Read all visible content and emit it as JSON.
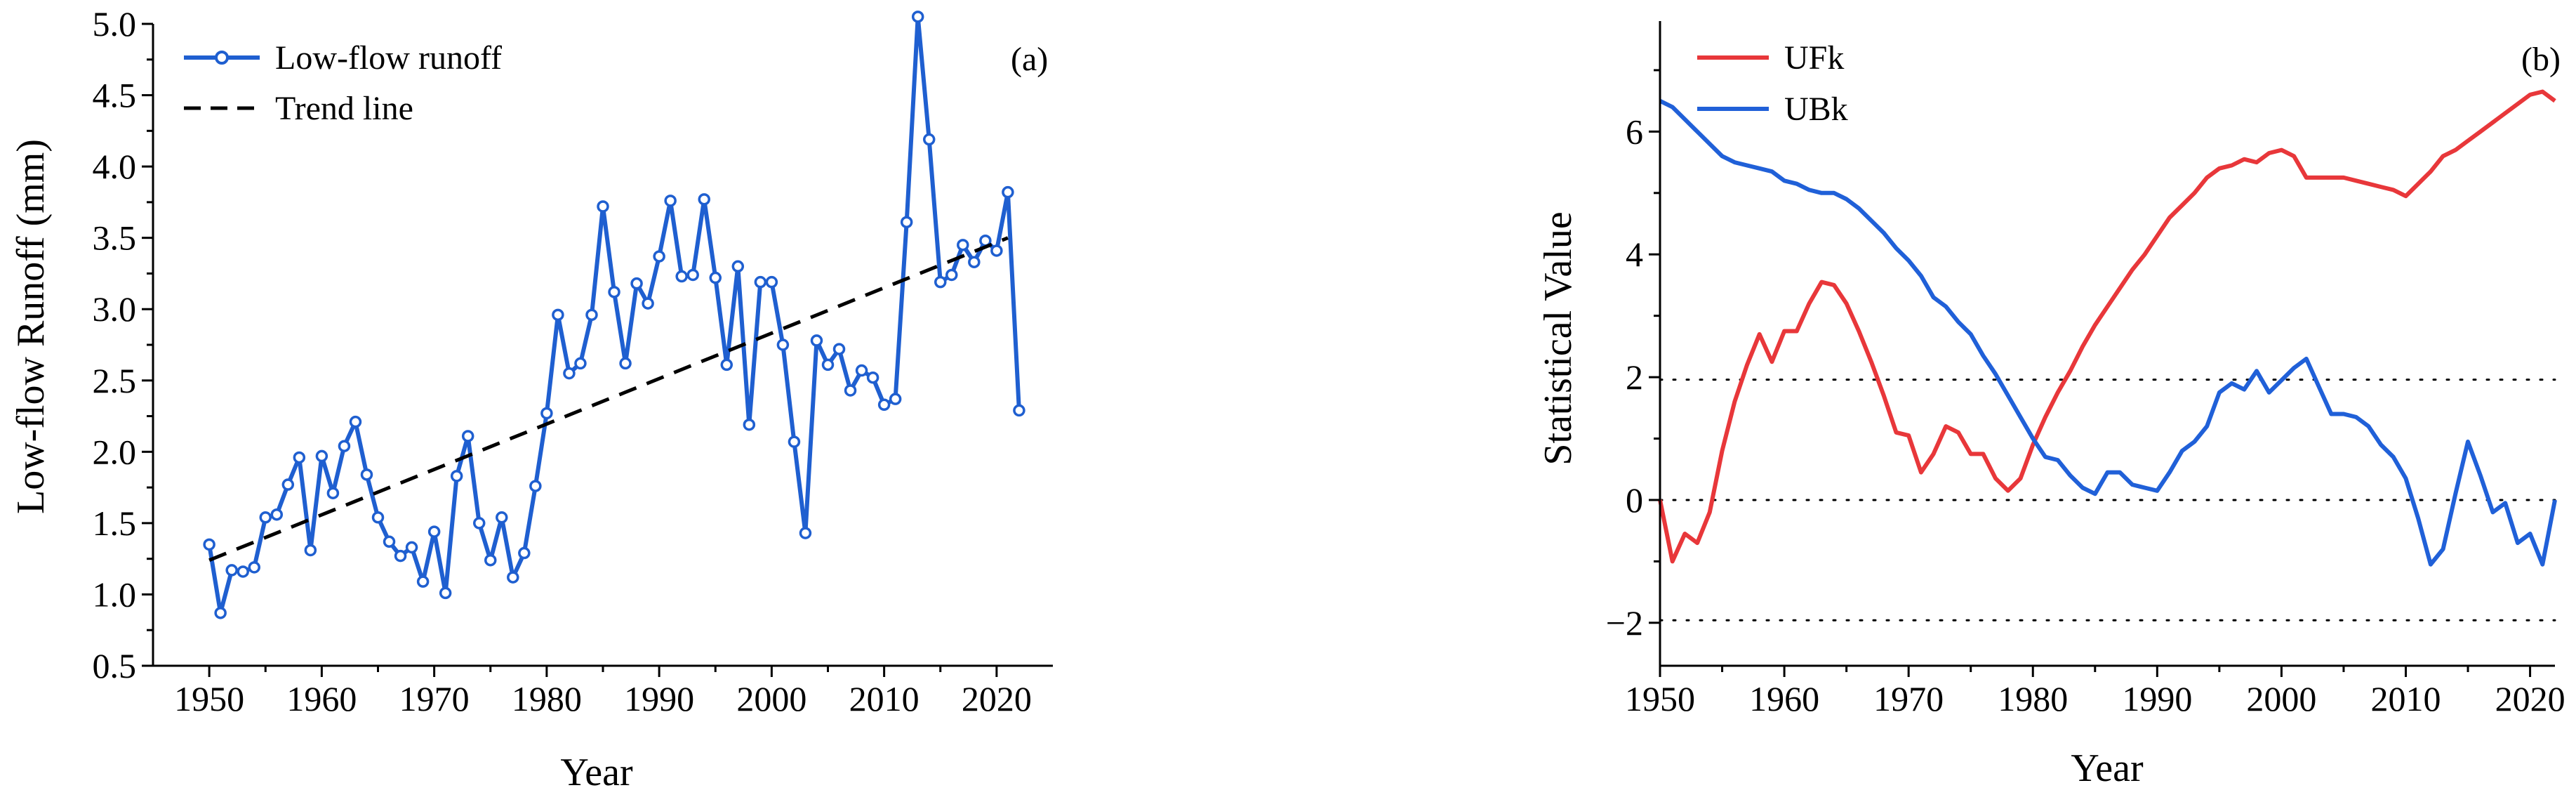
{
  "chart_data": [
    {
      "type": "line",
      "panel_label": "(a)",
      "xlabel": "Year",
      "ylabel": "Low-flow Runoff (mm)",
      "xlim": [
        1945,
        2025
      ],
      "ylim": [
        0.5,
        5.0
      ],
      "x_ticks": [
        1950,
        1960,
        1970,
        1980,
        1990,
        2000,
        2010,
        2020
      ],
      "x_tick_labels": [
        "1950",
        "1960",
        "1970",
        "1980",
        "1990",
        "2000",
        "2010",
        "2020"
      ],
      "y_ticks": [
        0.5,
        1.0,
        1.5,
        2.0,
        2.5,
        3.0,
        3.5,
        4.0,
        4.5,
        5.0
      ],
      "y_tick_labels": [
        "0.5",
        "1.0",
        "1.5",
        "2.0",
        "2.5",
        "3.0",
        "3.5",
        "4.0",
        "4.5",
        "5.0"
      ],
      "legend_position": "top-left",
      "grid": false,
      "series": [
        {
          "name": "Low-flow runoff",
          "color": "#1f5fd0",
          "style": "solid-with-open-circles",
          "x": [
            1950,
            1951,
            1952,
            1953,
            1954,
            1955,
            1956,
            1957,
            1958,
            1959,
            1960,
            1961,
            1962,
            1963,
            1964,
            1965,
            1966,
            1967,
            1968,
            1969,
            1970,
            1971,
            1972,
            1973,
            1974,
            1975,
            1976,
            1977,
            1978,
            1979,
            1980,
            1981,
            1982,
            1983,
            1984,
            1985,
            1986,
            1987,
            1988,
            1989,
            1990,
            1991,
            1992,
            1993,
            1994,
            1995,
            1996,
            1997,
            1998,
            1999,
            2000,
            2001,
            2002,
            2003,
            2004,
            2005,
            2006,
            2007,
            2008,
            2009,
            2010,
            2011,
            2012,
            2013,
            2014,
            2015,
            2016,
            2017,
            2018,
            2019,
            2020,
            2021,
            2022
          ],
          "values": [
            1.35,
            0.87,
            1.17,
            1.16,
            1.19,
            1.54,
            1.56,
            1.77,
            1.96,
            1.31,
            1.97,
            1.71,
            2.04,
            2.21,
            1.84,
            1.54,
            1.37,
            1.27,
            1.33,
            1.09,
            1.44,
            1.01,
            1.83,
            2.11,
            1.5,
            1.24,
            1.54,
            1.12,
            1.29,
            1.76,
            2.27,
            2.96,
            2.55,
            2.62,
            2.96,
            3.72,
            3.12,
            2.62,
            3.18,
            3.04,
            3.37,
            3.76,
            3.23,
            3.24,
            3.77,
            3.22,
            2.61,
            3.3,
            2.19,
            3.19,
            3.19,
            2.75,
            2.07,
            1.43,
            2.78,
            2.61,
            2.72,
            2.43,
            2.57,
            2.52,
            2.33,
            2.37,
            3.61,
            5.05,
            4.19,
            3.19,
            3.24,
            3.45,
            3.33,
            3.48,
            3.41,
            3.82,
            2.29
          ]
        },
        {
          "name": "Trend line",
          "color": "#000000",
          "style": "dashed",
          "x": [
            1950,
            2021
          ],
          "values": [
            1.24,
            3.5
          ]
        }
      ]
    },
    {
      "type": "line",
      "panel_label": "(b)",
      "xlabel": "Year",
      "ylabel": "Statistical Value",
      "xlim": [
        1950,
        2022
      ],
      "ylim": [
        -2.7,
        7.8
      ],
      "x_ticks": [
        1950,
        1960,
        1970,
        1980,
        1990,
        2000,
        2010,
        2020
      ],
      "x_tick_labels": [
        "1950",
        "1960",
        "1970",
        "1980",
        "1990",
        "2000",
        "2010",
        "2020"
      ],
      "y_ticks": [
        -2,
        0,
        2,
        4,
        6
      ],
      "y_tick_labels": [
        "−2",
        "0",
        "2",
        "4",
        "6"
      ],
      "reference_lines": [
        1.96,
        0,
        -1.96
      ],
      "legend_position": "top-left",
      "grid": false,
      "series": [
        {
          "name": "UFk",
          "color": "#e8373a",
          "x": [
            1950,
            1951,
            1952,
            1953,
            1954,
            1955,
            1956,
            1957,
            1958,
            1959,
            1960,
            1961,
            1962,
            1963,
            1964,
            1965,
            1966,
            1967,
            1968,
            1969,
            1970,
            1971,
            1972,
            1973,
            1974,
            1975,
            1976,
            1977,
            1978,
            1979,
            1980,
            1981,
            1982,
            1983,
            1984,
            1985,
            1986,
            1987,
            1988,
            1989,
            1990,
            1991,
            1992,
            1993,
            1994,
            1995,
            1996,
            1997,
            1998,
            1999,
            2000,
            2001,
            2002,
            2003,
            2004,
            2005,
            2006,
            2007,
            2008,
            2009,
            2010,
            2011,
            2012,
            2013,
            2014,
            2015,
            2016,
            2017,
            2018,
            2019,
            2020,
            2021,
            2022
          ],
          "values": [
            0,
            -1.0,
            -0.55,
            -0.7,
            -0.2,
            0.8,
            1.6,
            2.2,
            2.7,
            2.25,
            2.75,
            2.75,
            3.2,
            3.55,
            3.5,
            3.2,
            2.75,
            2.25,
            1.7,
            1.1,
            1.05,
            0.45,
            0.75,
            1.2,
            1.1,
            0.75,
            0.75,
            0.35,
            0.15,
            0.35,
            0.9,
            1.35,
            1.75,
            2.1,
            2.5,
            2.85,
            3.15,
            3.45,
            3.75,
            4.0,
            4.3,
            4.6,
            4.8,
            5.0,
            5.25,
            5.4,
            5.45,
            5.55,
            5.5,
            5.65,
            5.7,
            5.6,
            5.25,
            5.25,
            5.25,
            5.25,
            5.2,
            5.15,
            5.1,
            5.05,
            4.95,
            5.15,
            5.35,
            5.6,
            5.7,
            5.85,
            6.0,
            6.15,
            6.3,
            6.45,
            6.6,
            6.65,
            6.5
          ]
        },
        {
          "name": "UBk",
          "color": "#2060d8",
          "x": [
            1950,
            1951,
            1952,
            1953,
            1954,
            1955,
            1956,
            1957,
            1958,
            1959,
            1960,
            1961,
            1962,
            1963,
            1964,
            1965,
            1966,
            1967,
            1968,
            1969,
            1970,
            1971,
            1972,
            1973,
            1974,
            1975,
            1976,
            1977,
            1978,
            1979,
            1980,
            1981,
            1982,
            1983,
            1984,
            1985,
            1986,
            1987,
            1988,
            1989,
            1990,
            1991,
            1992,
            1993,
            1994,
            1995,
            1996,
            1997,
            1998,
            1999,
            2000,
            2001,
            2002,
            2003,
            2004,
            2005,
            2006,
            2007,
            2008,
            2009,
            2010,
            2011,
            2012,
            2013,
            2014,
            2015,
            2016,
            2017,
            2018,
            2019,
            2020,
            2021,
            2022
          ],
          "values": [
            6.5,
            6.4,
            6.2,
            6.0,
            5.8,
            5.6,
            5.5,
            5.45,
            5.4,
            5.35,
            5.2,
            5.15,
            5.05,
            5.0,
            5.0,
            4.9,
            4.75,
            4.55,
            4.35,
            4.1,
            3.9,
            3.65,
            3.3,
            3.15,
            2.9,
            2.7,
            2.35,
            2.05,
            1.7,
            1.35,
            1.0,
            0.7,
            0.65,
            0.4,
            0.2,
            0.1,
            0.45,
            0.45,
            0.25,
            0.2,
            0.15,
            0.45,
            0.8,
            0.95,
            1.2,
            1.75,
            1.9,
            1.8,
            2.1,
            1.75,
            1.95,
            2.15,
            2.3,
            1.85,
            1.4,
            1.4,
            1.35,
            1.2,
            0.9,
            0.7,
            0.35,
            -0.3,
            -1.05,
            -0.8,
            0.1,
            0.95,
            0.4,
            -0.2,
            -0.05,
            -0.7,
            -0.55,
            -1.05,
            0.0
          ]
        }
      ]
    }
  ]
}
